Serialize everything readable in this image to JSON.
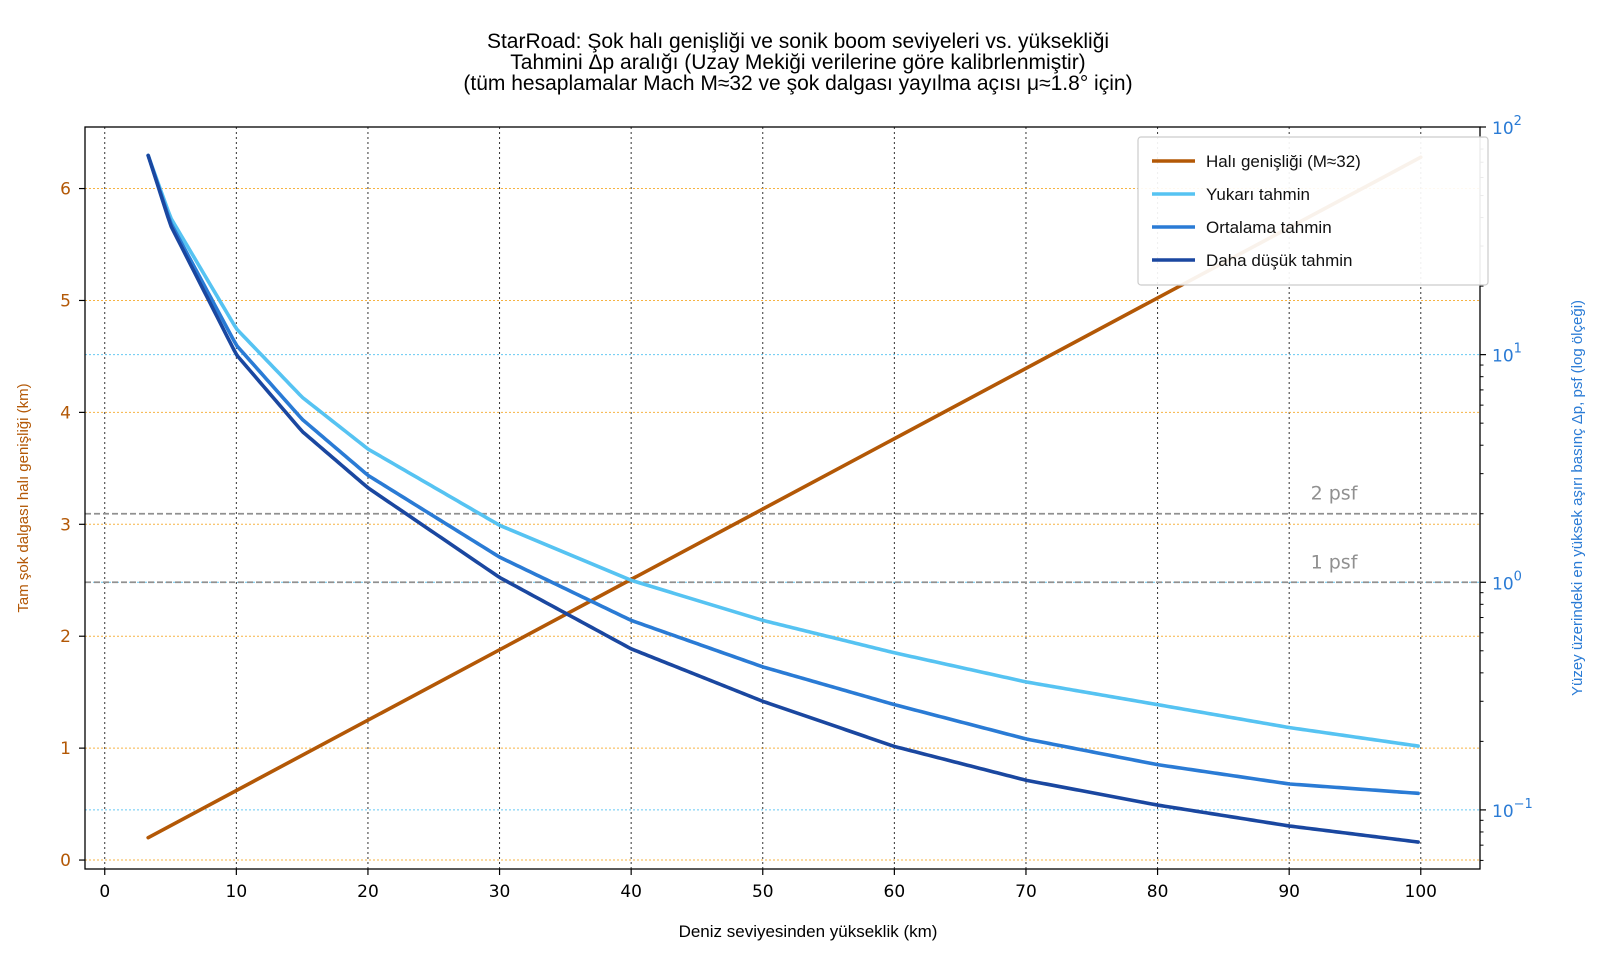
{
  "chart_data": {
    "type": "line",
    "title_lines": [
      "StarRoad: Şok halı genişliği ve sonik boom seviyeleri vs. yüksekliği",
      "Tahmini Δp aralığı (Uzay Mekiği verilerine göre kalibrlenmiştir)",
      "(tüm hesaplamalar Mach M≈32 ve şok dalgası yayılma açısı μ≈1.8° için)"
    ],
    "xlabel": "Deniz seviyesinden yükseklik (km)",
    "ylabel_left": "Tam şok dalgası halı genişliği (km)",
    "ylabel_right": "Yüzey üzerindeki en yüksek aşırı basınç Δp, psf (log ölçeği)",
    "xlim": [
      -1.5,
      104.5
    ],
    "xticks": [
      "0",
      "10",
      "20",
      "30",
      "40",
      "50",
      "60",
      "70",
      "80",
      "90",
      "100"
    ],
    "ylim_left": [
      -0.08,
      6.55
    ],
    "yticks_left": [
      "0",
      "1",
      "2",
      "3",
      "4",
      "5",
      "6"
    ],
    "ylim_right_log": [
      0.055,
      100
    ],
    "yticks_right": [
      {
        "value": 0.1,
        "base": "10",
        "exp": "−1"
      },
      {
        "value": 1,
        "base": "10",
        "exp": "0"
      },
      {
        "value": 10,
        "base": "10",
        "exp": "1"
      },
      {
        "value": 100,
        "base": "10",
        "exp": "2"
      }
    ],
    "grid": true,
    "legend_position": "top-right",
    "series": [
      {
        "name": "Halı genişliği (M≈32)",
        "axis": "left",
        "color": "#b35806",
        "x": [
          3.3,
          100
        ],
        "y": [
          0.2,
          6.28
        ]
      },
      {
        "name": "Yukarı tahmin",
        "axis": "right",
        "color": "#56c3f2",
        "x": [
          3.3,
          5,
          10,
          15,
          20,
          30,
          40,
          50,
          60,
          70,
          80,
          90,
          100
        ],
        "y": [
          75,
          40,
          13,
          6.5,
          3.85,
          1.78,
          1.02,
          0.68,
          0.49,
          0.365,
          0.29,
          0.23,
          0.19
        ]
      },
      {
        "name": "Ortalama tahmin",
        "axis": "right",
        "color": "#2a7bd5",
        "x": [
          3.3,
          5,
          10,
          15,
          20,
          30,
          40,
          50,
          60,
          70,
          80,
          90,
          100
        ],
        "y": [
          75,
          38,
          11,
          5.2,
          2.95,
          1.29,
          0.68,
          0.425,
          0.29,
          0.205,
          0.158,
          0.13,
          0.118
        ]
      },
      {
        "name": "Daha düşük tahmin",
        "axis": "right",
        "color": "#1a47a0",
        "x": [
          3.3,
          5,
          10,
          15,
          20,
          30,
          40,
          50,
          60,
          70,
          80,
          90,
          100
        ],
        "y": [
          75,
          37,
          10,
          4.6,
          2.6,
          1.05,
          0.51,
          0.3,
          0.19,
          0.135,
          0.105,
          0.085,
          0.072
        ]
      }
    ],
    "reference_lines": [
      {
        "label": "2 psf",
        "value": 2,
        "axis": "right",
        "color": "#909090"
      },
      {
        "label": "1 psf",
        "value": 1,
        "axis": "right",
        "color": "#909090"
      }
    ],
    "colors": {
      "left_axis": "#b35806",
      "right_axis": "#2a7bd5",
      "left_grid": "#f5a623",
      "right_grid": "#56c3f2",
      "x_grid": "#000000"
    }
  }
}
